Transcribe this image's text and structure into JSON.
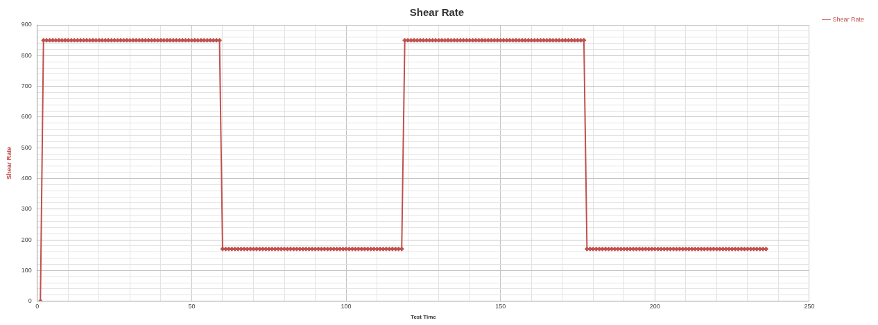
{
  "chart_data": {
    "type": "line",
    "title": "Shear Rate",
    "xlabel": "Test Time",
    "ylabel": "Shear Rate",
    "legend": "right",
    "grid": true,
    "marker": "diamond",
    "line_style": "solid",
    "xlim": [
      0,
      250
    ],
    "xticks": [
      0,
      {
        "value": 10,
        "label": null
      },
      {
        "value": 20,
        "label": null
      },
      {
        "value": 30,
        "label": null
      },
      {
        "value": 40,
        "label": null
      },
      50,
      {
        "value": 60,
        "label": null
      },
      {
        "value": 70,
        "label": null
      },
      {
        "value": 80,
        "label": null
      },
      {
        "value": 90,
        "label": null
      },
      100,
      {
        "value": 110,
        "label": null
      },
      {
        "value": 120,
        "label": null
      },
      {
        "value": 130,
        "label": null
      },
      {
        "value": 140,
        "label": null
      },
      150,
      {
        "value": 160,
        "label": null
      },
      {
        "value": 170,
        "label": null
      },
      {
        "value": 180,
        "label": null
      },
      {
        "value": 190,
        "label": null
      },
      200,
      {
        "value": 210,
        "label": null
      },
      {
        "value": 220,
        "label": null
      },
      {
        "value": 230,
        "label": null
      },
      {
        "value": 240,
        "label": null
      },
      250
    ],
    "ylim": [
      0,
      900
    ],
    "yticks": [
      0,
      {
        "value": 20,
        "label": null
      },
      {
        "value": 40,
        "label": null
      },
      {
        "value": 60,
        "label": null
      },
      {
        "value": 80,
        "label": null
      },
      100,
      {
        "value": 120,
        "label": null
      },
      {
        "value": 140,
        "label": null
      },
      {
        "value": 160,
        "label": null
      },
      {
        "value": 180,
        "label": null
      },
      200,
      {
        "value": 220,
        "label": null
      },
      {
        "value": 240,
        "label": null
      },
      {
        "value": 260,
        "label": null
      },
      {
        "value": 280,
        "label": null
      },
      300,
      {
        "value": 320,
        "label": null
      },
      {
        "value": 340,
        "label": null
      },
      {
        "value": 360,
        "label": null
      },
      {
        "value": 380,
        "label": null
      },
      400,
      {
        "value": 420,
        "label": null
      },
      {
        "value": 440,
        "label": null
      },
      {
        "value": 460,
        "label": null
      },
      {
        "value": 480,
        "label": null
      },
      500,
      {
        "value": 520,
        "label": null
      },
      {
        "value": 540,
        "label": null
      },
      {
        "value": 560,
        "label": null
      },
      {
        "value": 580,
        "label": null
      },
      600,
      {
        "value": 620,
        "label": null
      },
      {
        "value": 640,
        "label": null
      },
      {
        "value": 660,
        "label": null
      },
      {
        "value": 680,
        "label": null
      },
      700,
      {
        "value": 720,
        "label": null
      },
      {
        "value": 740,
        "label": null
      },
      {
        "value": 760,
        "label": null
      },
      {
        "value": 780,
        "label": null
      },
      800,
      {
        "value": 820,
        "label": null
      },
      {
        "value": 840,
        "label": null
      },
      {
        "value": 860,
        "label": null
      },
      {
        "value": 880,
        "label": null
      },
      900
    ],
    "series": [
      {
        "name": "Shear Rate",
        "color": "#c0504d",
        "x": [
          1,
          2,
          3,
          4,
          5,
          6,
          7,
          8,
          9,
          10,
          11,
          12,
          13,
          14,
          15,
          16,
          17,
          18,
          19,
          20,
          21,
          22,
          23,
          24,
          25,
          26,
          27,
          28,
          29,
          30,
          31,
          32,
          33,
          34,
          35,
          36,
          37,
          38,
          39,
          40,
          41,
          42,
          43,
          44,
          45,
          46,
          47,
          48,
          49,
          50,
          51,
          52,
          53,
          54,
          55,
          56,
          57,
          58,
          59,
          60,
          61,
          62,
          63,
          64,
          65,
          66,
          67,
          68,
          69,
          70,
          71,
          72,
          73,
          74,
          75,
          76,
          77,
          78,
          79,
          80,
          81,
          82,
          83,
          84,
          85,
          86,
          87,
          88,
          89,
          90,
          91,
          92,
          93,
          94,
          95,
          96,
          97,
          98,
          99,
          100,
          101,
          102,
          103,
          104,
          105,
          106,
          107,
          108,
          109,
          110,
          111,
          112,
          113,
          114,
          115,
          116,
          117,
          118,
          119,
          120,
          121,
          122,
          123,
          124,
          125,
          126,
          127,
          128,
          129,
          130,
          131,
          132,
          133,
          134,
          135,
          136,
          137,
          138,
          139,
          140,
          141,
          142,
          143,
          144,
          145,
          146,
          147,
          148,
          149,
          150,
          151,
          152,
          153,
          154,
          155,
          156,
          157,
          158,
          159,
          160,
          161,
          162,
          163,
          164,
          165,
          166,
          167,
          168,
          169,
          170,
          171,
          172,
          173,
          174,
          175,
          176,
          177,
          178,
          179,
          180,
          181,
          182,
          183,
          184,
          185,
          186,
          187,
          188,
          189,
          190,
          191,
          192,
          193,
          194,
          195,
          196,
          197,
          198,
          199,
          200,
          201,
          202,
          203,
          204,
          205,
          206,
          207,
          208,
          209,
          210,
          211,
          212,
          213,
          214,
          215,
          216,
          217,
          218,
          219,
          220,
          221,
          222,
          223,
          224,
          225,
          226,
          227,
          228,
          229,
          230,
          231,
          232,
          233,
          234,
          235,
          236
        ],
        "values": [
          0,
          850,
          850,
          850,
          850,
          850,
          850,
          850,
          850,
          850,
          850,
          850,
          850,
          850,
          850,
          850,
          850,
          850,
          850,
          850,
          850,
          850,
          850,
          850,
          850,
          850,
          850,
          850,
          850,
          850,
          850,
          850,
          850,
          850,
          850,
          850,
          850,
          850,
          850,
          850,
          850,
          850,
          850,
          850,
          850,
          850,
          850,
          850,
          850,
          850,
          850,
          850,
          850,
          850,
          850,
          850,
          850,
          850,
          850,
          170,
          170,
          170,
          170,
          170,
          170,
          170,
          170,
          170,
          170,
          170,
          170,
          170,
          170,
          170,
          170,
          170,
          170,
          170,
          170,
          170,
          170,
          170,
          170,
          170,
          170,
          170,
          170,
          170,
          170,
          170,
          170,
          170,
          170,
          170,
          170,
          170,
          170,
          170,
          170,
          170,
          170,
          170,
          170,
          170,
          170,
          170,
          170,
          170,
          170,
          170,
          170,
          170,
          170,
          170,
          170,
          170,
          170,
          170,
          850,
          850,
          850,
          850,
          850,
          850,
          850,
          850,
          850,
          850,
          850,
          850,
          850,
          850,
          850,
          850,
          850,
          850,
          850,
          850,
          850,
          850,
          850,
          850,
          850,
          850,
          850,
          850,
          850,
          850,
          850,
          850,
          850,
          850,
          850,
          850,
          850,
          850,
          850,
          850,
          850,
          850,
          850,
          850,
          850,
          850,
          850,
          850,
          850,
          850,
          850,
          850,
          850,
          850,
          850,
          850,
          850,
          850,
          850,
          170,
          170,
          170,
          170,
          170,
          170,
          170,
          170,
          170,
          170,
          170,
          170,
          170,
          170,
          170,
          170,
          170,
          170,
          170,
          170,
          170,
          170,
          170,
          170,
          170,
          170,
          170,
          170,
          170,
          170,
          170,
          170,
          170,
          170,
          170,
          170,
          170,
          170,
          170,
          170,
          170,
          170,
          170,
          170,
          170,
          170,
          170,
          170,
          170,
          170,
          170,
          170,
          170,
          170,
          170,
          170,
          170,
          170,
          170
        ]
      }
    ]
  }
}
